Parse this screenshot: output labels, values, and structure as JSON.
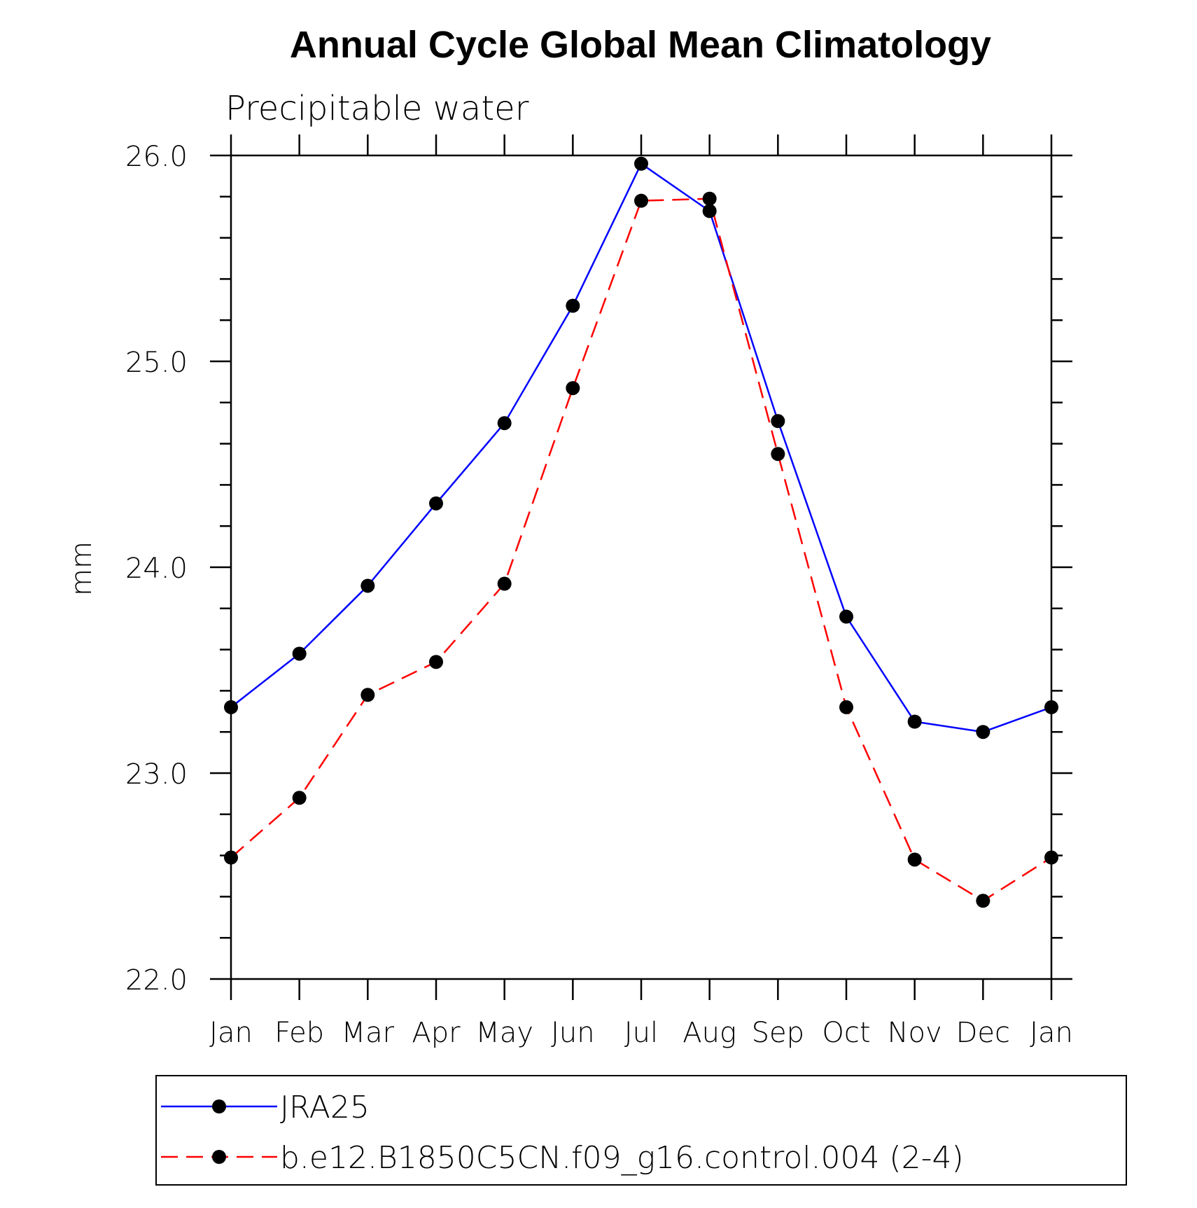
{
  "chart_data": {
    "type": "line",
    "title": "Annual Cycle Global Mean Climatology",
    "subtitle": "Precipitable water",
    "xlabel": "",
    "ylabel": "mm",
    "categories": [
      "Jan",
      "Feb",
      "Mar",
      "Apr",
      "May",
      "Jun",
      "Jul",
      "Aug",
      "Sep",
      "Oct",
      "Nov",
      "Dec",
      "Jan"
    ],
    "ylim": [
      22.0,
      26.0
    ],
    "yticks": [
      "22.0",
      "23.0",
      "24.0",
      "25.0",
      "26.0"
    ],
    "yminor_step": 0.2,
    "grid": false,
    "legend_position": "bottom",
    "series": [
      {
        "name": "JRA25",
        "color": "#0000ff",
        "dash": "solid",
        "marker": "circle",
        "values": [
          23.32,
          23.58,
          23.91,
          24.31,
          24.7,
          25.27,
          25.96,
          25.73,
          24.71,
          23.76,
          23.25,
          23.2,
          23.32
        ]
      },
      {
        "name": "b.e12.B1850C5CN.f09_g16.control.004 (2-4)",
        "color": "#ff0000",
        "dash": "dashed",
        "marker": "circle",
        "values": [
          22.59,
          22.88,
          23.38,
          23.54,
          23.92,
          24.87,
          25.78,
          25.79,
          24.55,
          23.32,
          22.58,
          22.38,
          22.59
        ]
      }
    ]
  }
}
